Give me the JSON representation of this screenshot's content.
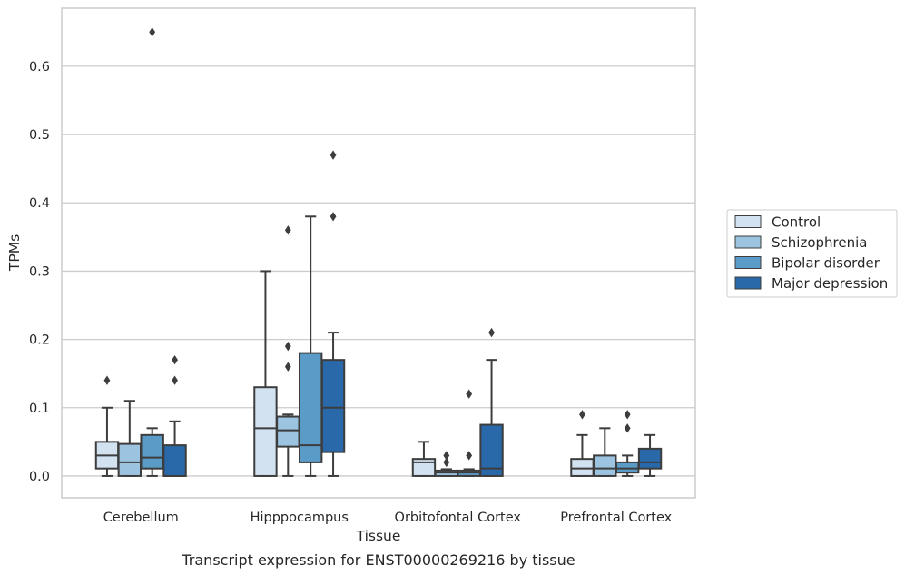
{
  "chart_data": {
    "type": "boxplot",
    "xlabel": "Tissue",
    "ylabel": "TPMs",
    "caption": "Transcript expression for ENST00000269216 by tissue",
    "ylim": [
      -0.032,
      0.685
    ],
    "yticks": [
      "0.0",
      "0.1",
      "0.2",
      "0.3",
      "0.4",
      "0.5",
      "0.6"
    ],
    "grid": "horizontal",
    "legend_position": "right",
    "categories": [
      "Cerebellum",
      "Hipppocampus",
      "Orbitofontal Cortex",
      "Prefrontal Cortex"
    ],
    "series": [
      {
        "name": "Control",
        "color": "#d3e2f1",
        "boxes": [
          {
            "whisker_low": 0.0,
            "q1": 0.011,
            "median": 0.03,
            "q3": 0.05,
            "whisker_high": 0.1,
            "outliers": [
              0.14
            ]
          },
          {
            "whisker_low": 0.0,
            "q1": 0.0,
            "median": 0.07,
            "q3": 0.13,
            "whisker_high": 0.3,
            "outliers": []
          },
          {
            "whisker_low": 0.0,
            "q1": 0.0,
            "median": 0.02,
            "q3": 0.025,
            "whisker_high": 0.05,
            "outliers": []
          },
          {
            "whisker_low": 0.0,
            "q1": 0.0,
            "median": 0.011,
            "q3": 0.025,
            "whisker_high": 0.06,
            "outliers": [
              0.09
            ]
          }
        ]
      },
      {
        "name": "Schizophrenia",
        "color": "#9cc4e0",
        "boxes": [
          {
            "whisker_low": 0.0,
            "q1": 0.0,
            "median": 0.02,
            "q3": 0.047,
            "whisker_high": 0.11,
            "outliers": []
          },
          {
            "whisker_low": 0.0,
            "q1": 0.043,
            "median": 0.067,
            "q3": 0.087,
            "whisker_high": 0.09,
            "outliers": [
              0.16,
              0.19,
              0.36
            ]
          },
          {
            "whisker_low": 0.0,
            "q1": 0.0,
            "median": 0.005,
            "q3": 0.008,
            "whisker_high": 0.01,
            "outliers": [
              0.02,
              0.03
            ]
          },
          {
            "whisker_low": 0.0,
            "q1": 0.0,
            "median": 0.011,
            "q3": 0.03,
            "whisker_high": 0.07,
            "outliers": []
          }
        ]
      },
      {
        "name": "Bipolar disorder",
        "color": "#5b9bc8",
        "boxes": [
          {
            "whisker_low": 0.0,
            "q1": 0.011,
            "median": 0.027,
            "q3": 0.06,
            "whisker_high": 0.07,
            "outliers": [
              0.65
            ]
          },
          {
            "whisker_low": 0.0,
            "q1": 0.02,
            "median": 0.045,
            "q3": 0.18,
            "whisker_high": 0.38,
            "outliers": []
          },
          {
            "whisker_low": 0.0,
            "q1": 0.0,
            "median": 0.005,
            "q3": 0.008,
            "whisker_high": 0.01,
            "outliers": [
              0.03,
              0.12
            ]
          },
          {
            "whisker_low": 0.0,
            "q1": 0.005,
            "median": 0.011,
            "q3": 0.02,
            "whisker_high": 0.03,
            "outliers": [
              0.07,
              0.09
            ]
          }
        ]
      },
      {
        "name": "Major depression",
        "color": "#2a69a9",
        "boxes": [
          {
            "whisker_low": 0.0,
            "q1": 0.0,
            "median": 0.0,
            "q3": 0.045,
            "whisker_high": 0.08,
            "outliers": [
              0.14,
              0.17
            ]
          },
          {
            "whisker_low": 0.0,
            "q1": 0.035,
            "median": 0.1,
            "q3": 0.17,
            "whisker_high": 0.21,
            "outliers": [
              0.38,
              0.47
            ]
          },
          {
            "whisker_low": 0.0,
            "q1": 0.0,
            "median": 0.011,
            "q3": 0.075,
            "whisker_high": 0.17,
            "outliers": [
              0.21
            ]
          },
          {
            "whisker_low": 0.0,
            "q1": 0.011,
            "median": 0.02,
            "q3": 0.04,
            "whisker_high": 0.06,
            "outliers": []
          }
        ]
      }
    ]
  }
}
